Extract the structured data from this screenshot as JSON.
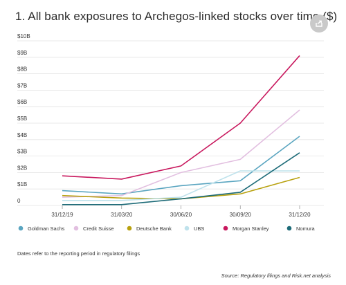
{
  "title": "1. All bank exposures to Archegos-linked stocks over time ($)",
  "share_icon": "share-icon",
  "footnote": "Dates refer to the reporting period in regulatory filings",
  "source": "Source: Regulatory filings and Risk.net analysis",
  "chart_data": {
    "type": "line",
    "title": "1. All bank exposures to Archegos-linked stocks over time ($)",
    "xlabel": "",
    "ylabel": "",
    "x": [
      "31/12/19",
      "31/03/20",
      "30/06/20",
      "30/09/20",
      "31/12/20"
    ],
    "ylim": [
      0,
      10
    ],
    "yticks": [
      0,
      1,
      2,
      3,
      4,
      5,
      6,
      7,
      8,
      9,
      10
    ],
    "ytick_labels": [
      "0",
      "$1B",
      "$2B",
      "$3B",
      "$4B",
      "$5B",
      "$6B",
      "$7B",
      "$8B",
      "$9B",
      "$10B"
    ],
    "grid": true,
    "legend_position": "bottom",
    "series": [
      {
        "name": "Goldman Sachs",
        "color": "#5aa5c0",
        "values": [
          0.9,
          0.7,
          1.2,
          1.5,
          4.2
        ]
      },
      {
        "name": "Credit Suisse",
        "color": "#e2bfe0",
        "values": [
          0.5,
          0.6,
          2.0,
          2.8,
          5.8
        ]
      },
      {
        "name": "Deutsche Bank",
        "color": "#b8a10e",
        "values": [
          0.6,
          0.45,
          0.4,
          0.7,
          1.7
        ]
      },
      {
        "name": "UBS",
        "color": "#bfe2ec",
        "values": [
          0.3,
          0.3,
          0.5,
          2.1,
          2.1
        ]
      },
      {
        "name": "Morgan Stanley",
        "color": "#c8175d",
        "values": [
          1.8,
          1.6,
          2.4,
          5.0,
          9.1
        ]
      },
      {
        "name": "Nomura",
        "color": "#1d6b78",
        "values": [
          0.05,
          0.05,
          0.4,
          0.8,
          3.2
        ]
      }
    ]
  }
}
